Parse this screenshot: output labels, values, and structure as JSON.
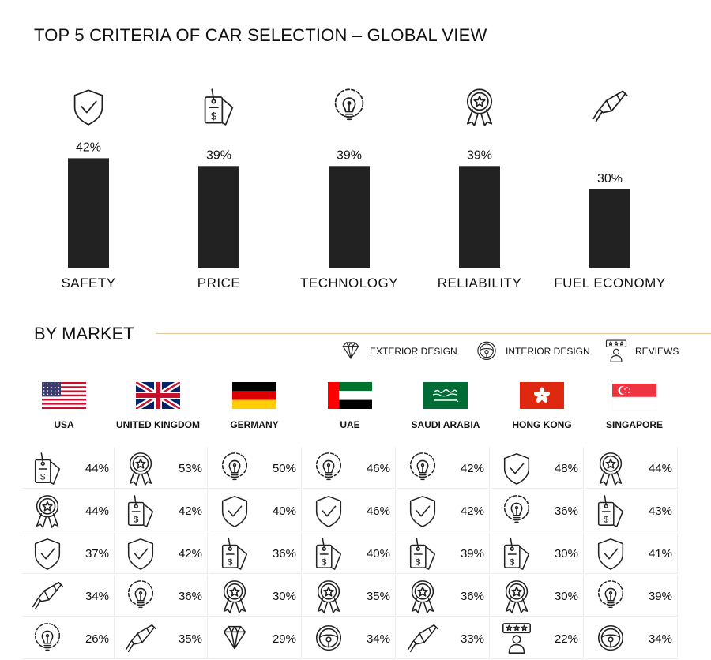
{
  "title": "TOP 5 CRITERIA OF CAR SELECTION – GLOBAL VIEW",
  "chart_data": [
    {
      "type": "bar",
      "categories": [
        "SAFETY",
        "PRICE",
        "TECHNOLOGY",
        "RELIABILITY",
        "FUEL ECONOMY"
      ],
      "values": [
        42,
        39,
        39,
        39,
        30
      ],
      "value_labels": [
        "42%",
        "39%",
        "39%",
        "39%",
        "30%"
      ],
      "icons": [
        "shield-icon",
        "price-tag-icon",
        "lightbulb-gear-icon",
        "award-ribbon-icon",
        "fuel-nozzle-icon"
      ],
      "bar_color": "#222222",
      "unit": "%"
    },
    {
      "type": "table",
      "title": "BY MARKET",
      "legend": [
        {
          "label": "EXTERIOR DESIGN",
          "icon": "diamond-icon"
        },
        {
          "label": "INTERIOR DESIGN",
          "icon": "steering-wheel-icon"
        },
        {
          "label": "REVIEWS",
          "icon": "reviews-icon"
        }
      ],
      "markets": [
        {
          "name": "USA",
          "flag": "usa-flag-icon",
          "criteria": [
            {
              "icon": "price-tag-icon",
              "value": "44%"
            },
            {
              "icon": "award-ribbon-icon",
              "value": "44%"
            },
            {
              "icon": "shield-icon",
              "value": "37%"
            },
            {
              "icon": "fuel-nozzle-icon",
              "value": "34%"
            },
            {
              "icon": "lightbulb-gear-icon",
              "value": "26%"
            }
          ]
        },
        {
          "name": "UNITED KINGDOM",
          "flag": "uk-flag-icon",
          "criteria": [
            {
              "icon": "award-ribbon-icon",
              "value": "53%"
            },
            {
              "icon": "price-tag-icon",
              "value": "42%"
            },
            {
              "icon": "shield-icon",
              "value": "42%"
            },
            {
              "icon": "lightbulb-gear-icon",
              "value": "36%"
            },
            {
              "icon": "fuel-nozzle-icon",
              "value": "35%"
            }
          ]
        },
        {
          "name": "GERMANY",
          "flag": "germany-flag-icon",
          "criteria": [
            {
              "icon": "lightbulb-gear-icon",
              "value": "50%"
            },
            {
              "icon": "shield-icon",
              "value": "40%"
            },
            {
              "icon": "price-tag-icon",
              "value": "36%"
            },
            {
              "icon": "award-ribbon-icon",
              "value": "30%"
            },
            {
              "icon": "diamond-icon",
              "value": "29%"
            }
          ]
        },
        {
          "name": "UAE",
          "flag": "uae-flag-icon",
          "criteria": [
            {
              "icon": "lightbulb-gear-icon",
              "value": "46%"
            },
            {
              "icon": "shield-icon",
              "value": "46%"
            },
            {
              "icon": "price-tag-icon",
              "value": "40%"
            },
            {
              "icon": "award-ribbon-icon",
              "value": "35%"
            },
            {
              "icon": "steering-wheel-icon",
              "value": "34%"
            }
          ]
        },
        {
          "name": "SAUDI ARABIA",
          "flag": "saudi-arabia-flag-icon",
          "criteria": [
            {
              "icon": "lightbulb-gear-icon",
              "value": "42%"
            },
            {
              "icon": "shield-icon",
              "value": "42%"
            },
            {
              "icon": "price-tag-icon",
              "value": "39%"
            },
            {
              "icon": "award-ribbon-icon",
              "value": "36%"
            },
            {
              "icon": "fuel-nozzle-icon",
              "value": "33%"
            }
          ]
        },
        {
          "name": "HONG KONG",
          "flag": "hong-kong-flag-icon",
          "criteria": [
            {
              "icon": "shield-icon",
              "value": "48%"
            },
            {
              "icon": "lightbulb-gear-icon",
              "value": "36%"
            },
            {
              "icon": "price-tag-icon",
              "value": "30%"
            },
            {
              "icon": "award-ribbon-icon",
              "value": "30%"
            },
            {
              "icon": "reviews-icon",
              "value": "22%"
            }
          ]
        },
        {
          "name": "SINGAPORE",
          "flag": "singapore-flag-icon",
          "criteria": [
            {
              "icon": "award-ribbon-icon",
              "value": "44%"
            },
            {
              "icon": "price-tag-icon",
              "value": "43%"
            },
            {
              "icon": "shield-icon",
              "value": "41%"
            },
            {
              "icon": "lightbulb-gear-icon",
              "value": "39%"
            },
            {
              "icon": "steering-wheel-icon",
              "value": "34%"
            }
          ]
        }
      ]
    }
  ]
}
